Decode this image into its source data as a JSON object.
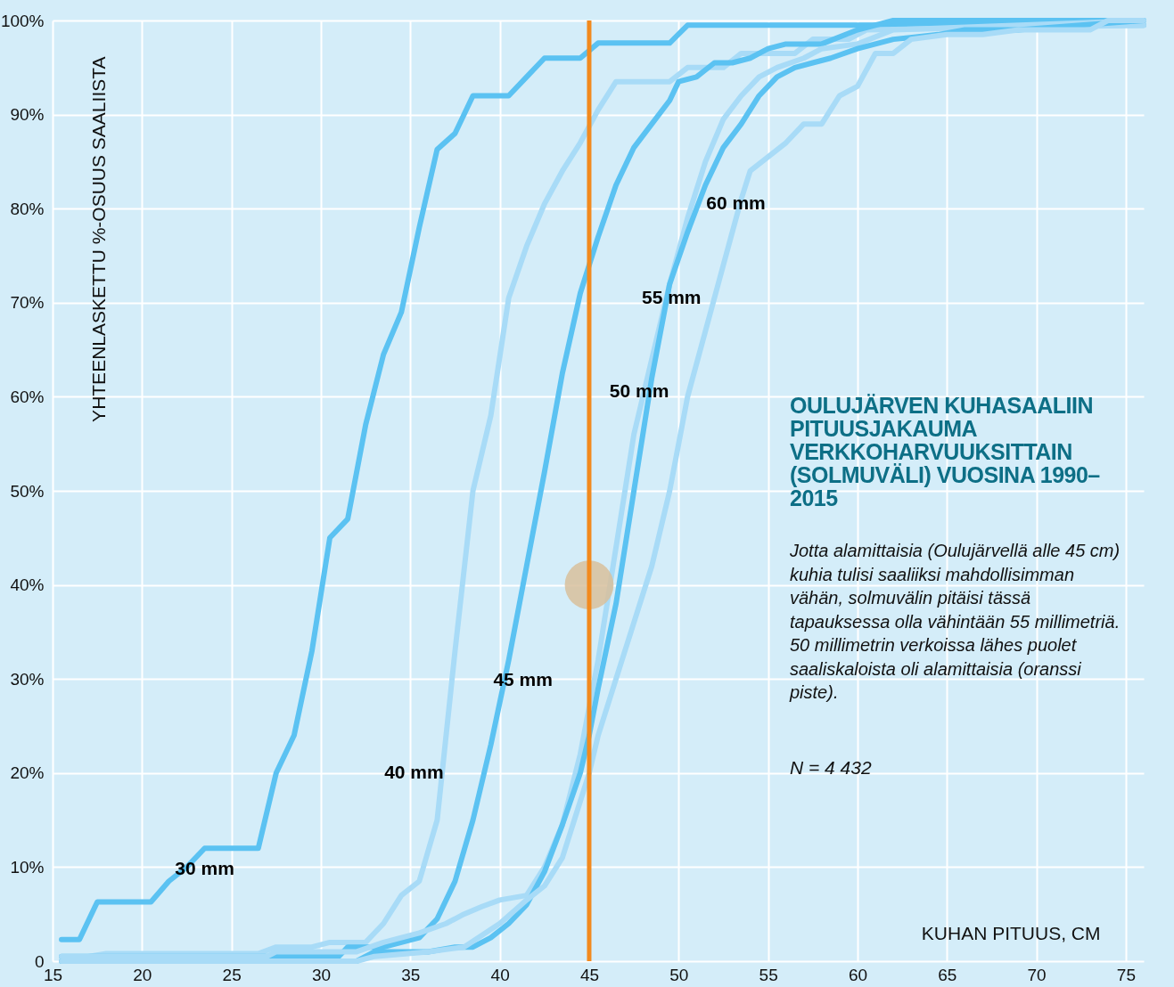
{
  "chart_data": {
    "type": "line",
    "title": "OULUJÄRVEN KUHASAALIIN PITUUSJAKAUMA VERKKOHARVUUKSITTAIN (SOLMUVÄLI) VUOSINA 1990–2015",
    "subtitle": "Jotta alamittaisia (Oulujärvellä alle 45 cm) kuhia tulisi saaliiksi mahdollisimman vähän, solmuvälin pitäisi tässä tapauksessa olla vähintään 55 millimetriä. 50 millimetrin verkoissa lähes puolet saaliskaloista oli alamittaisia (oranssi piste).",
    "annotations": [
      "N = 4 432"
    ],
    "xlabel": "KUHAN PITUUS, CM",
    "ylabel": "YHTEENLASKETTU %-OSUUS SAALIISTA",
    "xlim": [
      15,
      76
    ],
    "ylim": [
      0,
      100
    ],
    "xticks": [
      15,
      20,
      25,
      30,
      35,
      40,
      45,
      50,
      55,
      60,
      65,
      70,
      75
    ],
    "yticks": [
      0,
      {
        "value": 10,
        "label": "10%"
      },
      {
        "value": 20,
        "label": "20%"
      },
      {
        "value": 30,
        "label": "30%"
      },
      {
        "value": 40,
        "label": "40%"
      },
      {
        "value": 50,
        "label": "50%"
      },
      {
        "value": 60,
        "label": "60%"
      },
      {
        "value": 70,
        "label": "70%"
      },
      {
        "value": 80,
        "label": "80%"
      },
      {
        "value": 90,
        "label": "90%"
      },
      {
        "value": 100,
        "label": "100%"
      }
    ],
    "grid": true,
    "legend": false,
    "marker": "none",
    "line_style": "solid",
    "ref_lines": [
      {
        "axis": "x",
        "value": 45,
        "color": "#f28a1e"
      }
    ],
    "series": [
      {
        "name": "30 mm",
        "color": "#5bc2f2",
        "x": [
          15.5,
          16.5,
          17.5,
          20.5,
          21.5,
          22.5,
          23.5,
          26.5,
          27.5,
          28.5,
          29.5,
          30.5,
          31.5,
          32.5,
          33.5,
          34.5,
          35.5,
          36.5,
          37.5,
          38.5,
          40.5,
          41.5,
          42.5,
          44.5,
          45.5,
          49.5,
          50.5,
          76
        ],
        "values": [
          2.3,
          2.3,
          6.3,
          6.3,
          8.5,
          10,
          12,
          12,
          20,
          24,
          33,
          45,
          47,
          57,
          64.5,
          69,
          78,
          86.3,
          88,
          92,
          92,
          94,
          96,
          96,
          97.6,
          97.6,
          99.5,
          99.5
        ]
      },
      {
        "name": "40 mm",
        "color": "#a8dbf7",
        "x": [
          15.5,
          18,
          26.5,
          27.5,
          29.5,
          30.5,
          32.5,
          33.5,
          34.5,
          35.5,
          36.5,
          37.5,
          38.5,
          39.5,
          40.5,
          41.5,
          42.5,
          43.5,
          44.5,
          45.5,
          46.5,
          49.5,
          50.5,
          52.5,
          53.5,
          56.5,
          57.5,
          59.5,
          60.5,
          76
        ],
        "values": [
          0,
          0.8,
          0.8,
          1.5,
          1.5,
          2,
          2,
          4,
          7,
          8.5,
          15,
          33,
          50,
          58,
          70.5,
          76,
          80.5,
          84,
          87,
          90.5,
          93.5,
          93.5,
          95,
          95,
          96.5,
          96.5,
          98,
          98,
          99,
          99.5
        ]
      },
      {
        "name": "45 mm",
        "color": "#5bc2f2",
        "x": [
          15.5,
          31,
          31.5,
          33.5,
          35.5,
          36.5,
          37.5,
          38.5,
          39.5,
          40.5,
          41.5,
          42.5,
          43.5,
          44.5,
          45.5,
          46.5,
          47.5,
          48.5,
          49.5,
          50,
          51,
          52,
          53,
          54,
          55,
          56,
          58,
          60,
          62,
          76
        ],
        "values": [
          0.5,
          0.5,
          1.5,
          1.5,
          2.5,
          4.5,
          8.5,
          15,
          23,
          32,
          42,
          52,
          62.5,
          71,
          77,
          82.5,
          86.5,
          89,
          91.5,
          93.5,
          94,
          95.5,
          95.5,
          96,
          97,
          97.5,
          97.5,
          99,
          100,
          100
        ]
      },
      {
        "name": "50 mm",
        "color": "#a8dbf7",
        "x": [
          15.5,
          27,
          27.5,
          32,
          33.5,
          35.5,
          37,
          38,
          39,
          40,
          41.5,
          42.5,
          43.5,
          44.5,
          45.5,
          46.5,
          47.5,
          48.5,
          49.5,
          50.5,
          51.5,
          52.5,
          53.5,
          54.5,
          55.5,
          57,
          58,
          60,
          62,
          76
        ],
        "values": [
          0.5,
          0.5,
          1,
          1,
          2,
          3,
          4,
          5,
          5.8,
          6.5,
          7,
          10,
          14.5,
          22,
          32,
          44,
          56,
          64,
          72,
          79,
          85,
          89.5,
          92,
          94,
          95,
          96,
          97,
          97.5,
          99,
          100
        ]
      },
      {
        "name": "55 mm",
        "color": "#5bc2f2",
        "x": [
          15.5,
          32,
          33,
          36,
          37.5,
          38.5,
          39.5,
          40.5,
          41.5,
          42.5,
          43.5,
          44.5,
          45,
          45.5,
          46.5,
          47.5,
          48.5,
          49.5,
          50.5,
          51.5,
          52.5,
          53.5,
          54.5,
          55.5,
          56.5,
          57.5,
          58.5,
          60,
          62,
          64.5,
          66,
          69,
          76
        ],
        "values": [
          0,
          0,
          1,
          1,
          1.5,
          1.5,
          2.5,
          4,
          6,
          9.5,
          14.5,
          20,
          24,
          29,
          38,
          50,
          62,
          72,
          77.5,
          82.5,
          86.5,
          89,
          92,
          94,
          95,
          95.5,
          96,
          97,
          98,
          98.5,
          99,
          99,
          100
        ]
      },
      {
        "name": "60 mm",
        "color": "#a8dbf7",
        "x": [
          15.5,
          32,
          33,
          36,
          38,
          40,
          41.5,
          42.5,
          43.5,
          44.5,
          45,
          45.5,
          46.5,
          47.5,
          48.5,
          49.5,
          50.5,
          51.5,
          52.5,
          53.5,
          54,
          55,
          56,
          57,
          58,
          59,
          60,
          61,
          62,
          63,
          65,
          67,
          69,
          73,
          74,
          76
        ],
        "values": [
          0,
          0,
          0.5,
          1,
          1.5,
          4,
          6.5,
          8,
          11,
          17,
          20,
          24,
          30,
          36,
          42,
          50,
          60,
          67,
          74,
          81,
          84,
          85.5,
          87,
          89,
          89,
          92,
          93,
          96.5,
          96.5,
          98,
          98.5,
          98.5,
          99,
          99,
          100,
          100
        ]
      },
      {
        "type": "scatter",
        "marker": "circle",
        "color": "#d8bf9c",
        "x": [
          45
        ],
        "values": [
          40
        ]
      }
    ]
  }
}
